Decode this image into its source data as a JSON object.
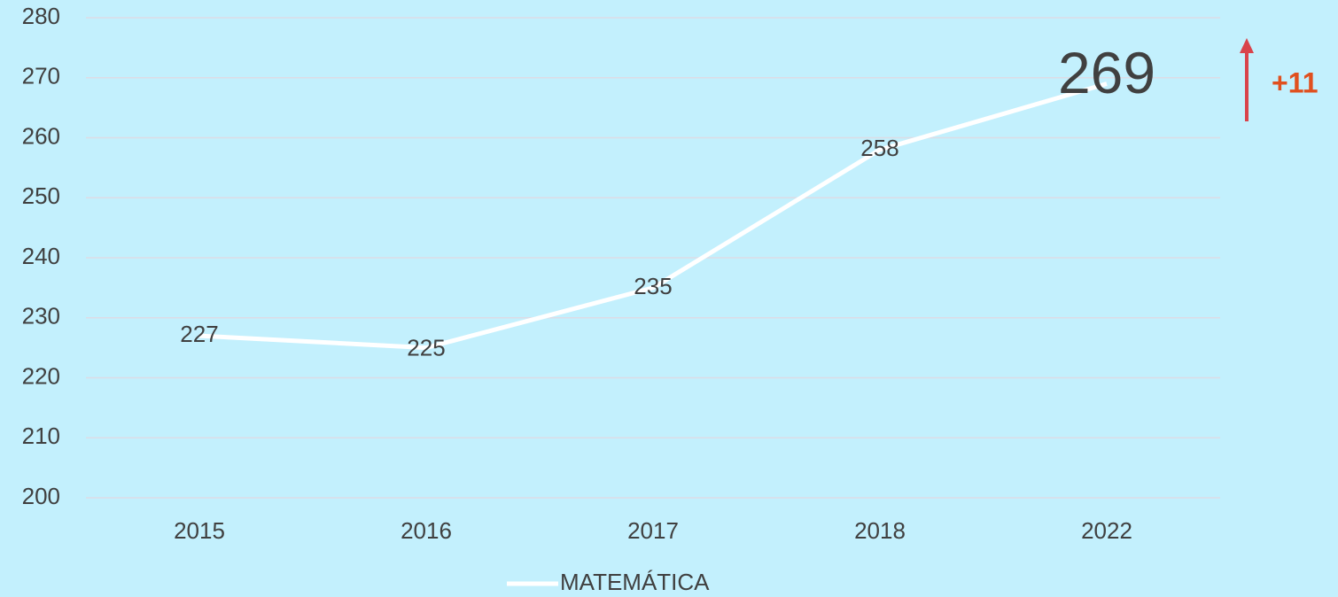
{
  "chart_data": {
    "type": "line",
    "categories": [
      "2015",
      "2016",
      "2017",
      "2018",
      "2022"
    ],
    "series": [
      {
        "name": "MATEMÁTICA",
        "color": "#ffffff",
        "values": [
          227,
          225,
          235,
          258,
          269
        ]
      }
    ],
    "ylim": [
      200,
      280
    ],
    "yticks": [
      200,
      210,
      220,
      230,
      240,
      250,
      260,
      270,
      280
    ],
    "grid": true,
    "legend": "bottom",
    "annotation": "+11"
  }
}
